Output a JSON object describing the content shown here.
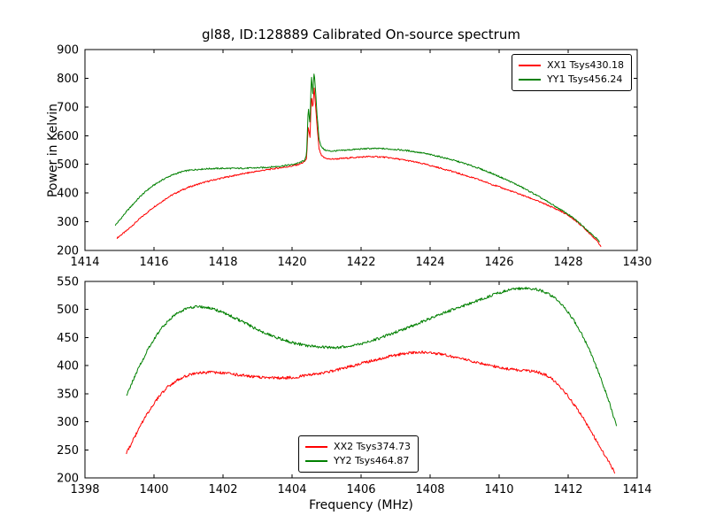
{
  "figure": {
    "background": "#ffffff",
    "frame_color": "#000000"
  },
  "chart_data": [
    {
      "type": "line",
      "title": "gl88, ID:128889 Calibrated On-source spectrum",
      "ylabel": "Power in Kelvin",
      "xlabel": "",
      "xlim": [
        1414,
        1430
      ],
      "ylim": [
        200,
        900
      ],
      "xticks": [
        1414,
        1416,
        1418,
        1420,
        1422,
        1424,
        1426,
        1428,
        1430
      ],
      "yticks": [
        200,
        300,
        400,
        500,
        600,
        700,
        800,
        900
      ],
      "grid": false,
      "legend_position": "upper right",
      "series": [
        {
          "name": "XX1 Tsys430.18",
          "color": "#ff0000",
          "noise": 2.5,
          "x": [
            1414.93,
            1415.0,
            1415.2,
            1415.4,
            1415.6,
            1415.8,
            1416.0,
            1416.2,
            1416.4,
            1416.6,
            1416.8,
            1417.0,
            1417.3,
            1417.6,
            1418.0,
            1418.4,
            1418.8,
            1419.2,
            1419.6,
            1420.0,
            1420.2,
            1420.35,
            1420.42,
            1420.47,
            1420.52,
            1420.56,
            1420.6,
            1420.64,
            1420.68,
            1420.72,
            1420.78,
            1420.85,
            1420.95,
            1421.1,
            1421.4,
            1421.8,
            1422.2,
            1422.6,
            1423.0,
            1423.4,
            1423.8,
            1424.2,
            1424.6,
            1425.0,
            1425.4,
            1425.8,
            1426.2,
            1426.6,
            1427.0,
            1427.4,
            1427.8,
            1428.0,
            1428.2,
            1428.4,
            1428.6,
            1428.8,
            1428.95
          ],
          "y": [
            243,
            250,
            268,
            290,
            312,
            332,
            352,
            368,
            385,
            398,
            410,
            420,
            432,
            442,
            453,
            463,
            472,
            480,
            487,
            494,
            500,
            508,
            520,
            635,
            590,
            745,
            690,
            770,
            705,
            640,
            555,
            530,
            522,
            518,
            520,
            524,
            527,
            526,
            520,
            512,
            502,
            490,
            477,
            462,
            447,
            430,
            413,
            396,
            378,
            358,
            336,
            322,
            305,
            285,
            262,
            238,
            215
          ]
        },
        {
          "name": "YY1 Tsys456.24",
          "color": "#008000",
          "noise": 2.5,
          "x": [
            1414.88,
            1415.0,
            1415.2,
            1415.4,
            1415.6,
            1415.8,
            1416.0,
            1416.2,
            1416.4,
            1416.6,
            1416.8,
            1417.0,
            1417.3,
            1417.6,
            1418.0,
            1418.4,
            1418.8,
            1419.2,
            1419.6,
            1420.0,
            1420.2,
            1420.35,
            1420.42,
            1420.47,
            1420.52,
            1420.56,
            1420.6,
            1420.64,
            1420.68,
            1420.72,
            1420.78,
            1420.85,
            1420.95,
            1421.1,
            1421.4,
            1421.8,
            1422.2,
            1422.6,
            1423.0,
            1423.4,
            1423.8,
            1424.2,
            1424.6,
            1425.0,
            1425.4,
            1425.8,
            1426.2,
            1426.6,
            1427.0,
            1427.4,
            1427.8,
            1428.0,
            1428.2,
            1428.4,
            1428.6,
            1428.8,
            1428.92
          ],
          "y": [
            288,
            305,
            335,
            362,
            388,
            410,
            428,
            443,
            456,
            466,
            474,
            479,
            483,
            485,
            486,
            486,
            487,
            489,
            493,
            499,
            505,
            513,
            530,
            700,
            640,
            815,
            745,
            820,
            760,
            680,
            590,
            560,
            550,
            546,
            548,
            552,
            555,
            555,
            552,
            547,
            539,
            529,
            517,
            503,
            487,
            468,
            447,
            424,
            398,
            370,
            341,
            326,
            308,
            288,
            266,
            245,
            228
          ]
        }
      ]
    },
    {
      "type": "line",
      "title": "",
      "ylabel": "",
      "xlabel": "Frequency (MHz)",
      "xlim": [
        1398,
        1414
      ],
      "ylim": [
        200,
        550
      ],
      "xticks": [
        1398,
        1400,
        1402,
        1404,
        1406,
        1408,
        1410,
        1412,
        1414
      ],
      "yticks": [
        200,
        250,
        300,
        350,
        400,
        450,
        500,
        550
      ],
      "grid": false,
      "legend_position": "lower center",
      "series": [
        {
          "name": "XX2 Tsys374.73",
          "color": "#ff0000",
          "noise": 2.5,
          "x": [
            1399.2,
            1399.4,
            1399.6,
            1399.8,
            1400.0,
            1400.2,
            1400.4,
            1400.6,
            1400.8,
            1401.0,
            1401.3,
            1401.6,
            1402.0,
            1402.4,
            1402.8,
            1403.2,
            1403.6,
            1404.0,
            1404.4,
            1404.8,
            1405.2,
            1405.6,
            1406.0,
            1406.4,
            1406.8,
            1407.2,
            1407.6,
            1408.0,
            1408.4,
            1408.8,
            1409.2,
            1409.6,
            1410.0,
            1410.4,
            1410.8,
            1411.0,
            1411.2,
            1411.4,
            1411.6,
            1411.8,
            1412.0,
            1412.2,
            1412.4,
            1412.6,
            1412.8,
            1413.0,
            1413.2,
            1413.35
          ],
          "y": [
            244,
            268,
            292,
            314,
            333,
            349,
            362,
            371,
            378,
            383,
            387,
            388,
            387,
            384,
            381,
            379,
            378,
            379,
            382,
            386,
            391,
            397,
            404,
            410,
            416,
            421,
            424,
            423,
            420,
            414,
            408,
            402,
            397,
            393,
            391,
            390,
            387,
            382,
            373,
            360,
            345,
            328,
            310,
            290,
            268,
            247,
            226,
            210
          ]
        },
        {
          "name": "YY2 Tsys464.87",
          "color": "#008000",
          "noise": 2.5,
          "x": [
            1399.2,
            1399.4,
            1399.6,
            1399.8,
            1400.0,
            1400.2,
            1400.4,
            1400.6,
            1400.8,
            1401.0,
            1401.2,
            1401.5,
            1401.8,
            1402.1,
            1402.4,
            1402.7,
            1403.0,
            1403.3,
            1403.6,
            1404.0,
            1404.4,
            1404.8,
            1405.2,
            1405.6,
            1406.0,
            1406.4,
            1406.8,
            1407.2,
            1407.6,
            1408.0,
            1408.4,
            1408.8,
            1409.2,
            1409.6,
            1410.0,
            1410.4,
            1410.8,
            1411.0,
            1411.2,
            1411.4,
            1411.6,
            1411.8,
            1412.0,
            1412.2,
            1412.4,
            1412.6,
            1412.8,
            1413.0,
            1413.2,
            1413.4
          ],
          "y": [
            345,
            375,
            402,
            426,
            447,
            465,
            479,
            490,
            498,
            503,
            505,
            504,
            499,
            492,
            483,
            474,
            464,
            456,
            449,
            441,
            436,
            433,
            432,
            434,
            439,
            446,
            455,
            464,
            474,
            484,
            494,
            503,
            512,
            521,
            530,
            536,
            538,
            537,
            534,
            529,
            521,
            510,
            495,
            477,
            455,
            430,
            400,
            368,
            333,
            292
          ]
        }
      ]
    }
  ]
}
